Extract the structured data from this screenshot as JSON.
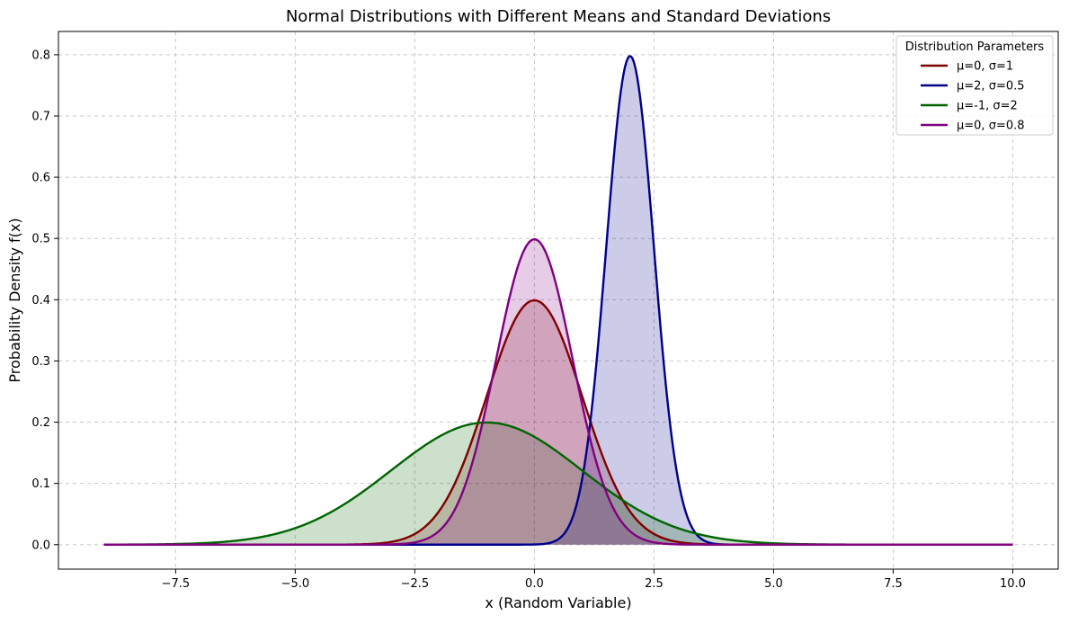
{
  "chart_data": {
    "type": "line",
    "title": "Normal Distributions with Different Means and Standard Deviations",
    "xlabel": "x (Random Variable)",
    "ylabel": "Probability Density f(x)",
    "xlim": [
      -9.95,
      10.95
    ],
    "ylim": [
      -0.04,
      0.838
    ],
    "x_range": [
      -9,
      10
    ],
    "grid": true,
    "filled": true,
    "xticks": [
      -7.5,
      -5.0,
      -2.5,
      0.0,
      2.5,
      5.0,
      7.5,
      10.0
    ],
    "xtick_labels": [
      "−7.5",
      "−5.0",
      "−2.5",
      "0.0",
      "2.5",
      "5.0",
      "7.5",
      "10.0"
    ],
    "yticks": [
      0.0,
      0.1,
      0.2,
      0.3,
      0.4,
      0.5,
      0.6,
      0.7,
      0.8
    ],
    "ytick_labels": [
      "0.0",
      "0.1",
      "0.2",
      "0.3",
      "0.4",
      "0.5",
      "0.6",
      "0.7",
      "0.8"
    ],
    "legend": {
      "title": "Distribution Parameters",
      "placement": "top-right"
    },
    "series": [
      {
        "name": "μ=0, σ=1",
        "mu": 0,
        "sigma": 1,
        "color": "#800000",
        "peak": 0.399
      },
      {
        "name": "μ=2, σ=0.5",
        "mu": 2,
        "sigma": 0.5,
        "color": "#00008b",
        "peak": 0.798
      },
      {
        "name": "μ=-1, σ=2",
        "mu": -1,
        "sigma": 2,
        "color": "#006400",
        "peak": 0.199
      },
      {
        "name": "μ=0, σ=0.8",
        "mu": 0,
        "sigma": 0.8,
        "color": "#800080",
        "peak": 0.499
      }
    ]
  }
}
